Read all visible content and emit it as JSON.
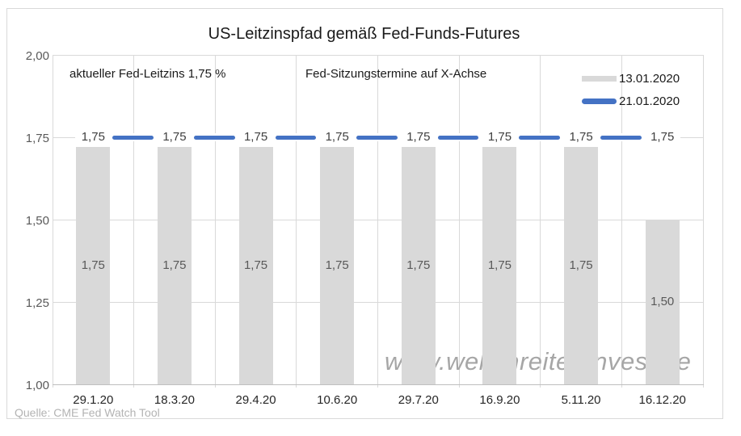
{
  "chart_data": {
    "type": "bar",
    "title": "US-Leitzinspfad gemäß Fed-Funds-Futures",
    "categories": [
      "29.1.20",
      "18.3.20",
      "29.4.20",
      "10.6.20",
      "29.7.20",
      "16.9.20",
      "5.11.20",
      "16.12.20"
    ],
    "series": [
      {
        "name": "13.01.2020",
        "chart_type": "bar",
        "values": [
          1.75,
          1.75,
          1.75,
          1.75,
          1.75,
          1.75,
          1.75,
          1.5
        ],
        "labels": [
          "1,75",
          "1,75",
          "1,75",
          "1,75",
          "1,75",
          "1,75",
          "1,75",
          "1,50"
        ],
        "values_as_drawn": [
          1.72,
          1.72,
          1.72,
          1.72,
          1.72,
          1.72,
          1.72,
          1.5
        ]
      },
      {
        "name": "21.01.2020",
        "chart_type": "line",
        "values": [
          1.75,
          1.75,
          1.75,
          1.75,
          1.75,
          1.75,
          1.75,
          1.75
        ],
        "labels": [
          "1,75",
          "1,75",
          "1,75",
          "1,75",
          "1,75",
          "1,75",
          "1,75",
          "1,75"
        ]
      }
    ],
    "ylim": [
      1.0,
      2.0
    ],
    "ytick_values": [
      2.0,
      1.75,
      1.5,
      1.25,
      1.0
    ],
    "ytick_labels": [
      "2,00",
      "1,75",
      "1,50",
      "1,25",
      "1,00"
    ],
    "grid": true,
    "legend_position": "top-right",
    "annotations": [
      "aktueller Fed-Leitzins 1,75 %",
      "Fed-Sitzungstermine auf X-Achse"
    ]
  },
  "watermark": "www.wellenreiter-invest.de",
  "source": "Quelle: CME Fed Watch Tool",
  "colors": {
    "bar": "#d9d9d9",
    "line": "#4472c4",
    "grid": "#d9d9d9",
    "axis": "#bfbfbf",
    "ytick_label": "#595959",
    "xtick_label": "#262626",
    "bar_label": "#595959",
    "line_label": "#404040",
    "watermark": "#a6a6a6",
    "source": "#b3b3b3",
    "border": "#d9d9d9"
  }
}
